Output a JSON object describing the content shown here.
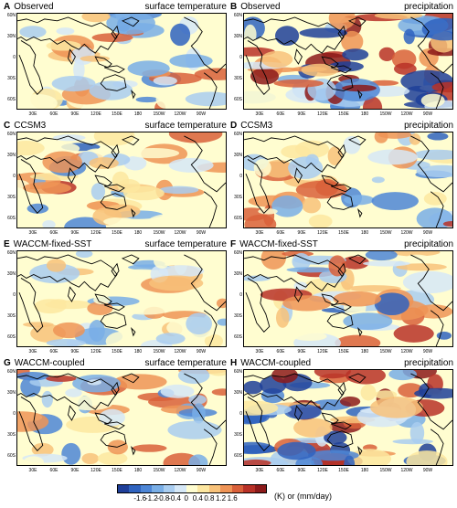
{
  "panels": [
    {
      "letter": "A",
      "model": "Observed",
      "variable": "surface temperature"
    },
    {
      "letter": "B",
      "model": "Observed",
      "variable": "precipitation"
    },
    {
      "letter": "C",
      "model": "CCSM3",
      "variable": "surface temperature"
    },
    {
      "letter": "D",
      "model": "CCSM3",
      "variable": "precipitation"
    },
    {
      "letter": "E",
      "model": "WACCM-fixed-SST",
      "variable": "surface temperature"
    },
    {
      "letter": "F",
      "model": "WACCM-fixed-SST",
      "variable": "precipitation"
    },
    {
      "letter": "G",
      "model": "WACCM-coupled",
      "variable": "surface temperature"
    },
    {
      "letter": "H",
      "model": "WACCM-coupled",
      "variable": "precipitation"
    }
  ],
  "lat_labels": [
    "60N",
    "30N",
    "0",
    "30S",
    "60S"
  ],
  "lon_labels": [
    "30E",
    "60E",
    "90E",
    "120E",
    "150E",
    "180",
    "150W",
    "120W",
    "90W"
  ],
  "colorbar": {
    "ticks": [
      "-1.6",
      "-1.2",
      "-0.8",
      "-0.4",
      "0",
      "0.4",
      "0.8",
      "1.2",
      "1.6"
    ],
    "units": "(K) or (mm/day)",
    "colors": [
      "#1f3f99",
      "#2f63bf",
      "#4d86d6",
      "#79aee6",
      "#a9cdf0",
      "#d6e8f7",
      "#fffdd0",
      "#fde7a0",
      "#f8c27a",
      "#ef9456",
      "#d9603a",
      "#b83127",
      "#8c1a1a"
    ]
  }
}
